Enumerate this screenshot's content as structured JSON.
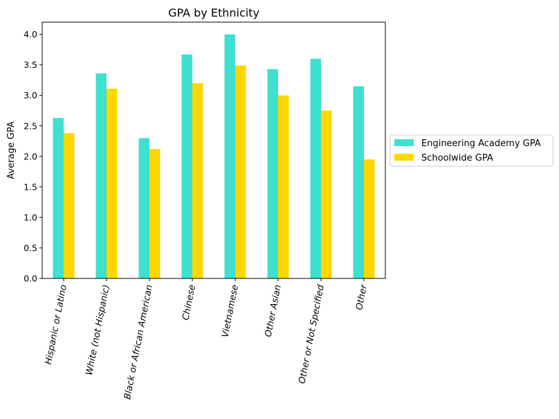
{
  "chart_data": {
    "type": "bar",
    "title": "GPA by Ethnicity",
    "xlabel": "",
    "ylabel": "Average GPA",
    "ylim": [
      0,
      4.2
    ],
    "yticks": [
      "0.0",
      "0.5",
      "1.0",
      "1.5",
      "2.0",
      "2.5",
      "3.0",
      "3.5",
      "4.0"
    ],
    "grid": false,
    "legend_position": "outside-right",
    "categories": [
      "Hispanic or Latino",
      "White (not Hispanic)",
      "Black or African American",
      "Chinese",
      "Vietnamese",
      "Other Asian",
      "Other or Not Specified",
      "Other"
    ],
    "series": [
      {
        "name": "Engineering Academy GPA",
        "color": "#40E0D0",
        "values": [
          2.63,
          3.36,
          2.3,
          3.67,
          4.0,
          3.43,
          3.6,
          3.15
        ]
      },
      {
        "name": "Schoolwide GPA",
        "color": "#FFD700",
        "values": [
          2.38,
          3.11,
          2.12,
          3.2,
          3.49,
          3.0,
          2.75,
          1.95
        ]
      }
    ]
  }
}
